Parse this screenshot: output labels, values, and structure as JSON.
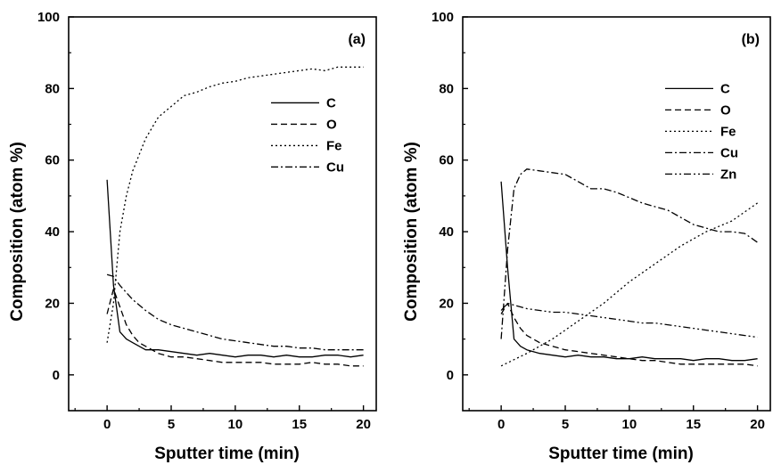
{
  "chart_data": [
    {
      "type": "line",
      "panel_label": "(a)",
      "xlabel": "Sputter time (min)",
      "ylabel": "Composition (atom %)",
      "xlim": [
        -3,
        21
      ],
      "ylim": [
        -10,
        100
      ],
      "xticks": [
        "0",
        "5",
        "10",
        "15",
        "20"
      ],
      "yticks": [
        "0",
        "20",
        "40",
        "60",
        "80",
        "100"
      ],
      "legend_position": "right-middle",
      "series": [
        {
          "name": "C",
          "style": "solid",
          "x": [
            0,
            0.5,
            1,
            1.5,
            2,
            2.5,
            3,
            4,
            5,
            6,
            7,
            8,
            9,
            10,
            11,
            12,
            13,
            14,
            15,
            16,
            17,
            18,
            19,
            20
          ],
          "y": [
            54.5,
            25,
            12,
            10,
            9,
            8,
            7,
            7,
            6.5,
            6,
            5.5,
            6,
            5.5,
            5,
            5.5,
            5.5,
            5,
            5.5,
            5,
            5,
            5.5,
            5.5,
            5,
            5.5
          ]
        },
        {
          "name": "O",
          "style": "dashed",
          "x": [
            0,
            0.5,
            1,
            1.5,
            2,
            2.5,
            3,
            4,
            5,
            6,
            7,
            8,
            9,
            10,
            11,
            12,
            13,
            14,
            15,
            16,
            17,
            18,
            19,
            20
          ],
          "y": [
            17,
            24,
            19,
            14,
            11,
            9,
            8,
            6,
            5,
            5,
            4.5,
            4,
            3.5,
            3.5,
            3.5,
            3.5,
            3,
            3,
            3,
            3.5,
            3,
            3,
            2.5,
            2.5
          ]
        },
        {
          "name": "Fe",
          "style": "dotted",
          "x": [
            0,
            0.5,
            1,
            1.5,
            2,
            3,
            4,
            5,
            6,
            7,
            8,
            9,
            10,
            11,
            12,
            13,
            14,
            15,
            16,
            17,
            18,
            19,
            20
          ],
          "y": [
            9,
            20,
            40,
            50,
            57,
            66,
            72,
            75,
            78,
            79,
            80.5,
            81.5,
            82,
            83,
            83.5,
            84,
            84.5,
            85,
            85.5,
            85,
            86,
            86,
            86
          ]
        },
        {
          "name": "Cu",
          "style": "dash-dot",
          "x": [
            0,
            0.5,
            1,
            2,
            3,
            4,
            5,
            6,
            7,
            8,
            9,
            10,
            11,
            12,
            13,
            14,
            15,
            16,
            17,
            18,
            19,
            20
          ],
          "y": [
            28,
            27.5,
            25,
            21,
            18,
            15.5,
            14,
            13,
            12,
            11,
            10,
            9.5,
            9,
            8.5,
            8,
            8,
            7.5,
            7.5,
            7,
            7,
            7,
            7
          ]
        }
      ]
    },
    {
      "type": "line",
      "panel_label": "(b)",
      "xlabel": "Sputter time (min)",
      "ylabel": "Composition (atom %)",
      "xlim": [
        -3,
        21
      ],
      "ylim": [
        -10,
        100
      ],
      "xticks": [
        "0",
        "5",
        "10",
        "15",
        "20"
      ],
      "yticks": [
        "0",
        "20",
        "40",
        "60",
        "80",
        "100"
      ],
      "legend_position": "right-middle",
      "series": [
        {
          "name": "C",
          "style": "solid",
          "x": [
            0,
            0.5,
            1,
            1.5,
            2,
            3,
            4,
            5,
            6,
            7,
            8,
            9,
            10,
            11,
            12,
            13,
            14,
            15,
            16,
            17,
            18,
            19,
            20
          ],
          "y": [
            54,
            30,
            10,
            8,
            7,
            6,
            5.5,
            5,
            5.5,
            5,
            5,
            4.5,
            4.5,
            5,
            4.5,
            4.5,
            4.5,
            4,
            4.5,
            4.5,
            4,
            4,
            4.5
          ]
        },
        {
          "name": "O",
          "style": "dashed",
          "x": [
            0,
            0.5,
            1,
            1.5,
            2,
            3,
            4,
            5,
            6,
            7,
            8,
            9,
            10,
            11,
            12,
            13,
            14,
            15,
            16,
            17,
            18,
            19,
            20
          ],
          "y": [
            17,
            20,
            16,
            13,
            11,
            9,
            8,
            7,
            6.5,
            6,
            5.5,
            5,
            4.5,
            4,
            4,
            3.5,
            3,
            3,
            3,
            3,
            3,
            3,
            2.5
          ]
        },
        {
          "name": "Fe",
          "style": "dotted",
          "x": [
            0,
            2,
            4,
            6,
            8,
            10,
            12,
            14,
            16,
            18,
            20
          ],
          "y": [
            2.5,
            6,
            10,
            15,
            20,
            26,
            31,
            36,
            40,
            43,
            48
          ]
        },
        {
          "name": "Cu",
          "style": "dash-dot",
          "x": [
            0,
            0.5,
            1,
            1.5,
            2,
            3,
            4,
            5,
            6,
            7,
            8,
            9,
            10,
            11,
            12,
            13,
            14,
            15,
            16,
            17,
            18,
            19,
            20
          ],
          "y": [
            10,
            35,
            52,
            56,
            57.5,
            57,
            56.5,
            56,
            54,
            52,
            52,
            51,
            49.5,
            48,
            47,
            46,
            44,
            42,
            41,
            40,
            40,
            39.5,
            37
          ]
        },
        {
          "name": "Zn",
          "style": "dash-dot-dot",
          "x": [
            0,
            0.5,
            1,
            2,
            3,
            4,
            5,
            6,
            7,
            8,
            9,
            10,
            11,
            12,
            13,
            14,
            15,
            16,
            17,
            18,
            19,
            20
          ],
          "y": [
            18,
            20,
            19.5,
            18.5,
            18,
            17.5,
            17.5,
            17,
            16.5,
            16,
            15.5,
            15,
            14.5,
            14.5,
            14,
            13.5,
            13,
            12.5,
            12,
            11.5,
            11,
            10.5
          ]
        }
      ]
    }
  ]
}
